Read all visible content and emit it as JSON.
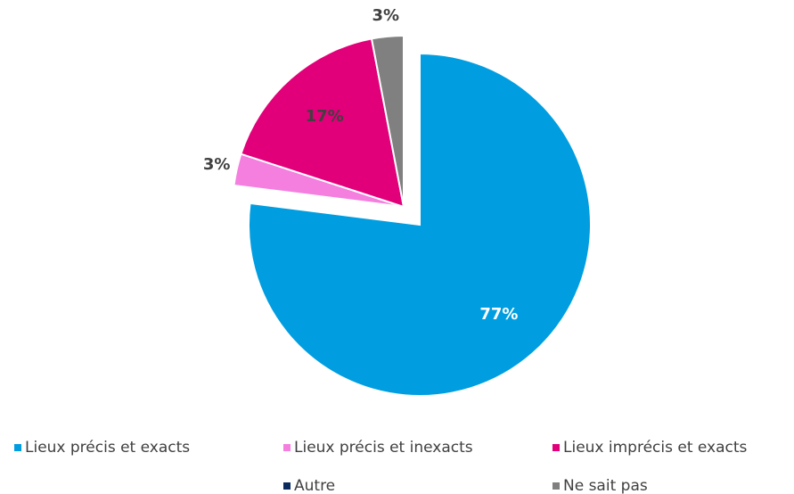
{
  "chart_data": {
    "type": "pie",
    "categories": [
      "Lieux précis et exacts",
      "Lieux précis et inexacts",
      "Lieux imprécis et exacts",
      "Autre",
      "Ne sait pas"
    ],
    "values": [
      77,
      3,
      17,
      0,
      3
    ],
    "value_labels": [
      "77%",
      "3%",
      "17%",
      null,
      "3%"
    ],
    "colors": [
      "#009ee0",
      "#f47fdf",
      "#e2007a",
      "#0b2b5e",
      "#808080"
    ],
    "label_colors": [
      "#ffffff",
      "#404040",
      "#404040",
      "#404040",
      "#404040"
    ],
    "legend": "bottom"
  }
}
